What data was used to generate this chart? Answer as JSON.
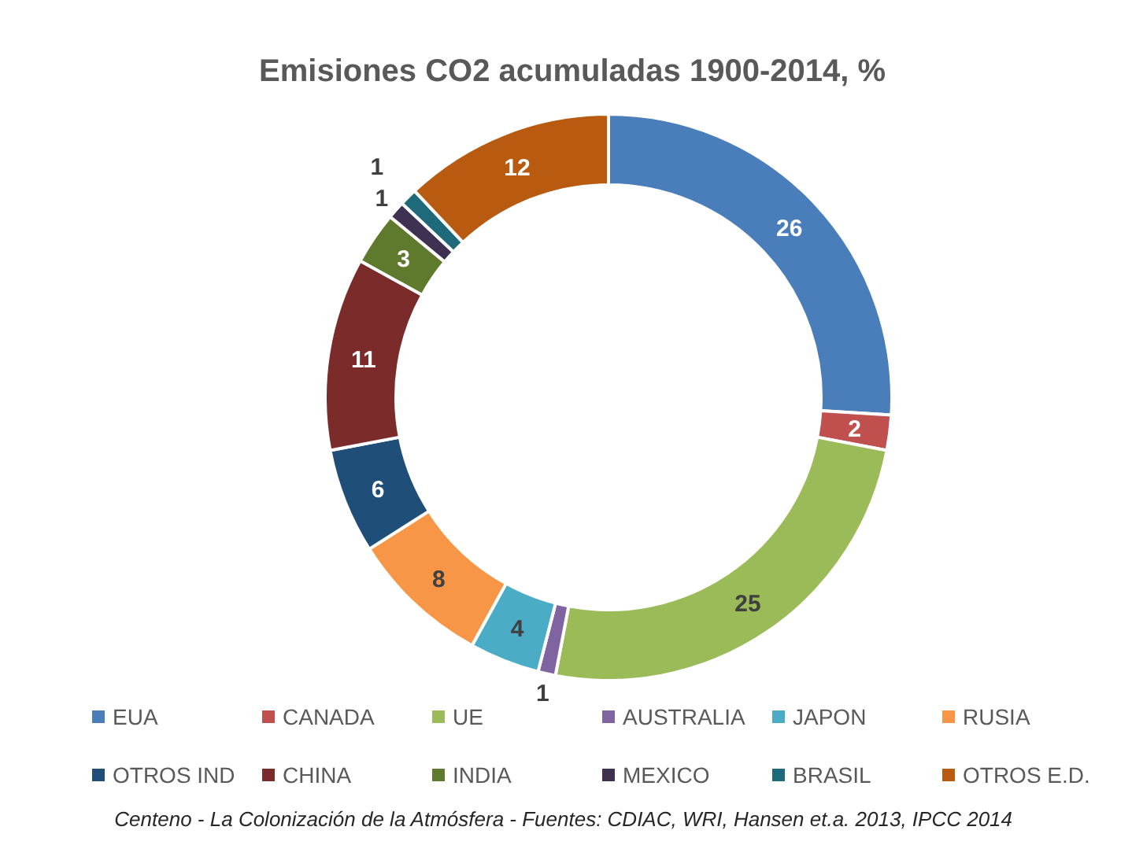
{
  "chart_data": {
    "type": "donut",
    "title": "Emisiones CO2 acumuladas 1900-2014, %",
    "categories": [
      "EUA",
      "CANADA",
      "UE",
      "AUSTRALIA",
      "JAPON",
      "RUSIA",
      "OTROS IND",
      "CHINA",
      "INDIA",
      "MEXICO",
      "BRASIL",
      "OTROS E.D."
    ],
    "values": [
      26,
      2,
      25,
      1,
      4,
      8,
      6,
      11,
      3,
      1,
      1,
      12
    ],
    "colors": [
      "#4a7ebb",
      "#c0504d",
      "#9bbb59",
      "#8064a2",
      "#4bacc6",
      "#f79646",
      "#1f4e79",
      "#7b2c2a",
      "#5f7a2d",
      "#3f3151",
      "#1e6a7a",
      "#b85a10"
    ],
    "data_labels": true,
    "legend": "bottom",
    "annotations": [
      "Centeno - La Colonización de la Atmósfera  -   Fuentes: CDIAC, WRI, Hansen et.a. 2013, IPCC 2014"
    ]
  }
}
